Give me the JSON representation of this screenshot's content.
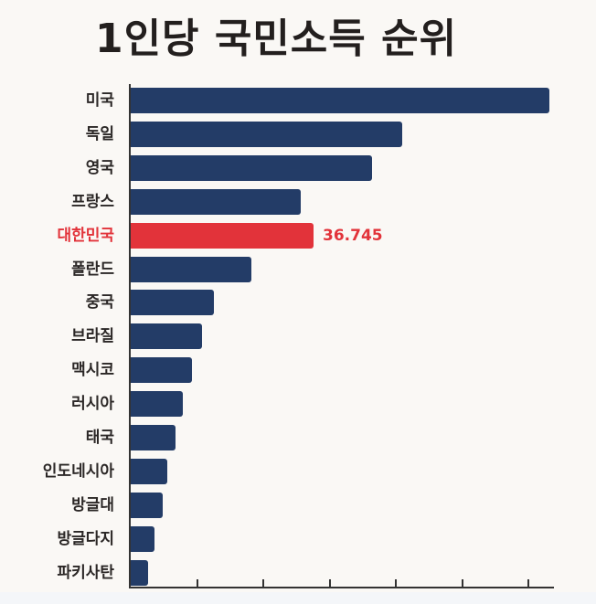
{
  "title": "1인당 국민소득 순위",
  "colors": {
    "bar": "#233c67",
    "highlight": "#e2333a",
    "background": "#faf8f5",
    "title": "#231f1e"
  },
  "highlight_label": "36.745",
  "chart_data": {
    "type": "bar",
    "orientation": "horizontal",
    "title": "1인당 국민소득 순위",
    "xlabel": "",
    "ylabel": "",
    "categories": [
      "미국",
      "독일",
      "영국",
      "프랑스",
      "대한민국",
      "폴란드",
      "중국",
      "브라질",
      "맥시코",
      "러시아",
      "태국",
      "인도네시아",
      "방글대",
      "방글다지",
      "파키사탄"
    ],
    "values": [
      84.1,
      54.6,
      48.5,
      34.2,
      36.745,
      24.3,
      16.7,
      14.3,
      12.3,
      10.5,
      9.0,
      7.3,
      6.4,
      4.8,
      3.5
    ],
    "highlighted": "대한민국",
    "annotations": [
      {
        "category": "대한민국",
        "text": "36.745"
      }
    ],
    "x_ticks_count": 6,
    "x_tick_labels": [],
    "grid": false,
    "legend": "none"
  }
}
